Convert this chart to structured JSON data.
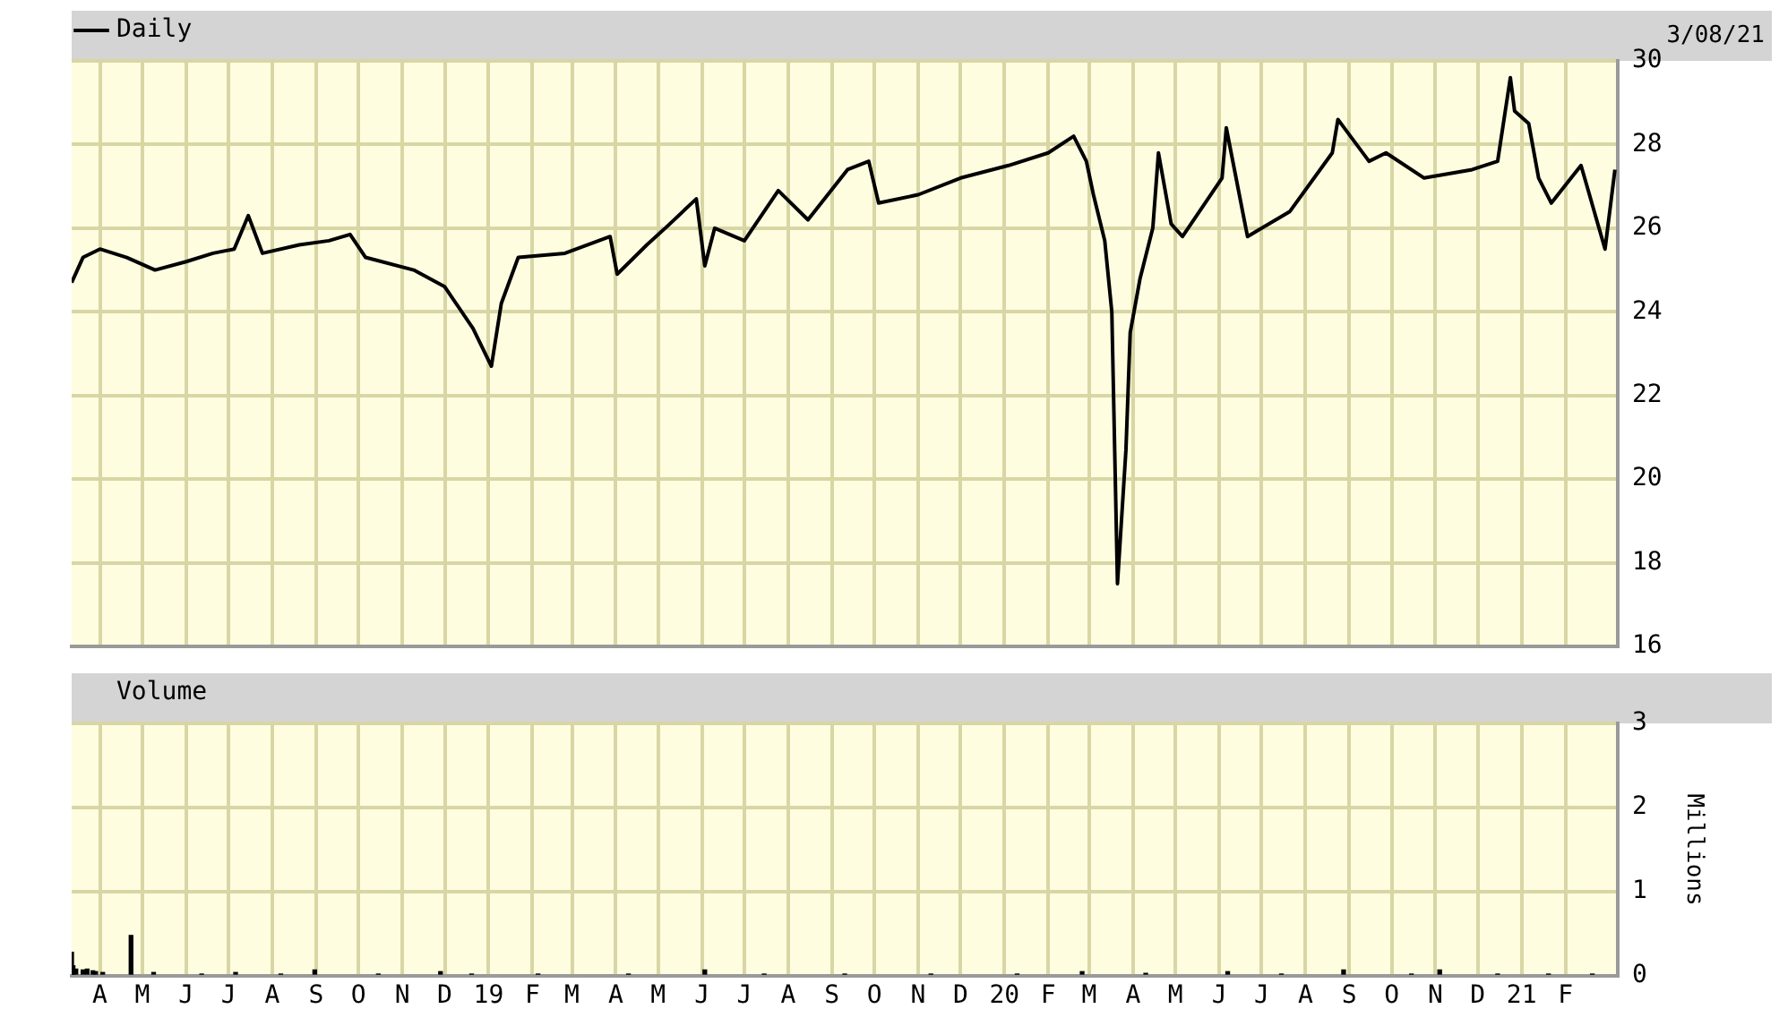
{
  "chart_data": [
    {
      "type": "line",
      "legend": "top left",
      "grid": true,
      "tick_labels": "y",
      "marker": "none",
      "line_style": "solid",
      "annotations": [
        "3/08/21"
      ],
      "xlim": [
        "2018-03-12",
        "2021-03-10"
      ],
      "ylim": [
        16,
        30
      ],
      "yticks": [
        16,
        18,
        20,
        22,
        24,
        26,
        28,
        30
      ],
      "xticks": [
        {
          "value": "2018-04-01",
          "label": null
        },
        {
          "value": "2018-05-01",
          "label": null
        },
        {
          "value": "2018-06-01",
          "label": null
        },
        {
          "value": "2018-07-01",
          "label": null
        },
        {
          "value": "2018-08-01",
          "label": null
        },
        {
          "value": "2018-09-01",
          "label": null
        },
        {
          "value": "2018-10-01",
          "label": null
        },
        {
          "value": "2018-11-01",
          "label": null
        },
        {
          "value": "2018-12-01",
          "label": null
        },
        {
          "value": "2019-01-01",
          "label": null
        },
        {
          "value": "2019-02-01",
          "label": null
        },
        {
          "value": "2019-03-01",
          "label": null
        },
        {
          "value": "2019-04-01",
          "label": null
        },
        {
          "value": "2019-05-01",
          "label": null
        },
        {
          "value": "2019-06-01",
          "label": null
        },
        {
          "value": "2019-07-01",
          "label": null
        },
        {
          "value": "2019-08-01",
          "label": null
        },
        {
          "value": "2019-09-01",
          "label": null
        },
        {
          "value": "2019-10-01",
          "label": null
        },
        {
          "value": "2019-11-01",
          "label": null
        },
        {
          "value": "2019-12-01",
          "label": null
        },
        {
          "value": "2020-01-01",
          "label": null
        },
        {
          "value": "2020-02-01",
          "label": null
        },
        {
          "value": "2020-03-01",
          "label": null
        },
        {
          "value": "2020-04-01",
          "label": null
        },
        {
          "value": "2020-05-01",
          "label": null
        },
        {
          "value": "2020-06-01",
          "label": null
        },
        {
          "value": "2020-07-01",
          "label": null
        },
        {
          "value": "2020-08-01",
          "label": null
        },
        {
          "value": "2020-09-01",
          "label": null
        },
        {
          "value": "2020-10-01",
          "label": null
        },
        {
          "value": "2020-11-01",
          "label": null
        },
        {
          "value": "2020-12-01",
          "label": null
        },
        {
          "value": "2021-01-01",
          "label": null
        },
        {
          "value": "2021-02-01",
          "label": null
        }
      ],
      "x": [
        "2018-03-12",
        "2018-03-20",
        "2018-04-01",
        "2018-04-20",
        "2018-05-10",
        "2018-06-01",
        "2018-06-20",
        "2018-07-05",
        "2018-07-15",
        "2018-07-25",
        "2018-08-20",
        "2018-09-10",
        "2018-09-25",
        "2018-10-06",
        "2018-11-09",
        "2018-12-01",
        "2018-12-21",
        "2019-01-03",
        "2019-01-10",
        "2019-01-22",
        "2019-02-24",
        "2019-03-28",
        "2019-04-02",
        "2019-04-23",
        "2019-05-06",
        "2019-05-28",
        "2019-06-03",
        "2019-06-10",
        "2019-07-01",
        "2019-07-25",
        "2019-08-15",
        "2019-09-12",
        "2019-09-27",
        "2019-10-04",
        "2019-11-01",
        "2019-12-01",
        "2020-01-04",
        "2020-02-01",
        "2020-02-19",
        "2020-02-28",
        "2020-03-04",
        "2020-03-12",
        "2020-03-17",
        "2020-03-21",
        "2020-03-27",
        "2020-03-30",
        "2020-04-06",
        "2020-04-15",
        "2020-04-19",
        "2020-04-28",
        "2020-05-06",
        "2020-06-03",
        "2020-06-06",
        "2020-06-21",
        "2020-07-21",
        "2020-08-20",
        "2020-08-24",
        "2020-09-15",
        "2020-09-27",
        "2020-10-24",
        "2020-11-27",
        "2020-12-15",
        "2020-12-24",
        "2020-12-27",
        "2021-01-06",
        "2021-01-13",
        "2021-01-22",
        "2021-02-12",
        "2021-03-01",
        "2021-03-08"
      ],
      "series": [
        {
          "name": "Daily",
          "color": "#000000",
          "values": [
            24.7,
            25.3,
            25.5,
            25.3,
            25.0,
            25.2,
            25.4,
            25.5,
            26.3,
            25.4,
            25.6,
            25.7,
            25.85,
            25.3,
            25.0,
            24.6,
            23.6,
            22.7,
            24.2,
            25.3,
            25.4,
            25.8,
            24.9,
            25.6,
            26.0,
            26.7,
            25.1,
            26.0,
            25.7,
            26.9,
            26.2,
            27.4,
            27.6,
            26.6,
            26.8,
            27.2,
            27.5,
            27.8,
            28.2,
            27.6,
            26.8,
            25.7,
            24.0,
            17.5,
            20.7,
            23.5,
            24.8,
            26.0,
            27.8,
            26.1,
            25.8,
            27.2,
            28.4,
            25.8,
            26.4,
            27.8,
            28.6,
            27.6,
            27.8,
            27.2,
            27.4,
            27.6,
            29.6,
            28.8,
            28.5,
            27.2,
            26.6,
            27.5,
            25.5,
            27.4
          ]
        }
      ]
    },
    {
      "type": "bar",
      "legend": "top left",
      "grid": true,
      "ylabel": "Millions",
      "xlim": [
        "2018-03-12",
        "2021-03-10"
      ],
      "ylim": [
        0,
        3
      ],
      "yticks": [
        0,
        1,
        2,
        3
      ],
      "xticks": [
        {
          "value": "2018-04-01",
          "label": "A"
        },
        {
          "value": "2018-05-01",
          "label": "M"
        },
        {
          "value": "2018-06-01",
          "label": "J"
        },
        {
          "value": "2018-07-01",
          "label": "J"
        },
        {
          "value": "2018-08-01",
          "label": "A"
        },
        {
          "value": "2018-09-01",
          "label": "S"
        },
        {
          "value": "2018-10-01",
          "label": "O"
        },
        {
          "value": "2018-11-01",
          "label": "N"
        },
        {
          "value": "2018-12-01",
          "label": "D"
        },
        {
          "value": "2019-01-01",
          "label": "19"
        },
        {
          "value": "2019-02-01",
          "label": "F"
        },
        {
          "value": "2019-03-01",
          "label": "M"
        },
        {
          "value": "2019-04-01",
          "label": "A"
        },
        {
          "value": "2019-05-01",
          "label": "M"
        },
        {
          "value": "2019-06-01",
          "label": "J"
        },
        {
          "value": "2019-07-01",
          "label": "J"
        },
        {
          "value": "2019-08-01",
          "label": "A"
        },
        {
          "value": "2019-09-01",
          "label": "S"
        },
        {
          "value": "2019-10-01",
          "label": "O"
        },
        {
          "value": "2019-11-01",
          "label": "N"
        },
        {
          "value": "2019-12-01",
          "label": "D"
        },
        {
          "value": "2020-01-01",
          "label": "20"
        },
        {
          "value": "2020-02-01",
          "label": "F"
        },
        {
          "value": "2020-03-01",
          "label": "M"
        },
        {
          "value": "2020-04-01",
          "label": "A"
        },
        {
          "value": "2020-05-01",
          "label": "M"
        },
        {
          "value": "2020-06-01",
          "label": "J"
        },
        {
          "value": "2020-07-01",
          "label": "J"
        },
        {
          "value": "2020-08-01",
          "label": "A"
        },
        {
          "value": "2020-09-01",
          "label": "S"
        },
        {
          "value": "2020-10-01",
          "label": "O"
        },
        {
          "value": "2020-11-01",
          "label": "N"
        },
        {
          "value": "2020-12-01",
          "label": "D"
        },
        {
          "value": "2021-01-01",
          "label": "21"
        },
        {
          "value": "2021-02-01",
          "label": "F"
        }
      ],
      "x": [
        "2018-03-12",
        "2018-03-13",
        "2018-03-15",
        "2018-03-20",
        "2018-03-23",
        "2018-03-27",
        "2018-03-29",
        "2018-04-03",
        "2018-04-23",
        "2018-05-09",
        "2018-06-12",
        "2018-07-06",
        "2018-08-07",
        "2018-08-31",
        "2018-10-15",
        "2018-11-28",
        "2018-12-20",
        "2019-02-05",
        "2019-04-10",
        "2019-06-03",
        "2019-07-15",
        "2019-09-10",
        "2019-11-10",
        "2020-01-10",
        "2020-02-25",
        "2020-04-10",
        "2020-06-07",
        "2020-07-15",
        "2020-08-28",
        "2020-10-15",
        "2020-11-04",
        "2020-12-15",
        "2021-01-20",
        "2021-02-20"
      ],
      "series": [
        {
          "name": "Volume",
          "color": "#000000",
          "values": [
            0.28,
            0.12,
            0.08,
            0.07,
            0.08,
            0.06,
            0.05,
            0.04,
            0.48,
            0.04,
            0.02,
            0.04,
            0.02,
            0.07,
            0.02,
            0.05,
            0.02,
            0.02,
            0.02,
            0.07,
            0.02,
            0.02,
            0.02,
            0.02,
            0.05,
            0.03,
            0.05,
            0.02,
            0.07,
            0.02,
            0.07,
            0.02,
            0.02,
            0.02
          ]
        }
      ]
    }
  ]
}
